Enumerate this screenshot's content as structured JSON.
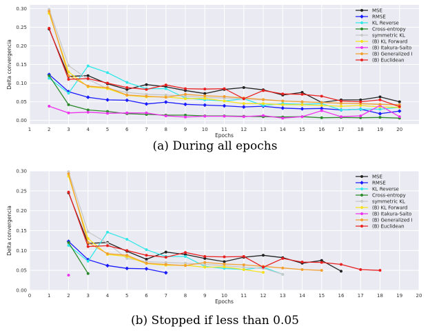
{
  "figure": {
    "caption_a": "(a) During all epochs",
    "caption_b": "(b) Stopped if less than 0.05"
  },
  "chart_data": [
    {
      "type": "line",
      "xlabel": "Epochs",
      "ylabel": "Delta convergencia",
      "xlim": [
        1,
        21
      ],
      "ylim": [
        -0.01,
        0.31
      ],
      "x_ticks": [
        1,
        2,
        3,
        4,
        5,
        6,
        7,
        8,
        9,
        10,
        11,
        12,
        13,
        14,
        15,
        16,
        17,
        18,
        19,
        20
      ],
      "y_ticks": [
        0.0,
        0.05,
        0.1,
        0.15,
        0.2,
        0.25,
        0.3
      ],
      "y_tick_labels": [
        "0.00",
        "0.05",
        "0.10",
        "0.15",
        "0.20",
        "0.25",
        "0.30"
      ],
      "grid": true,
      "legend_placement": "top-right",
      "series": [
        {
          "name": "MSE",
          "color": "#222222",
          "marker": "o",
          "x": [
            2,
            3,
            4,
            5,
            6,
            7,
            8,
            9,
            10,
            11,
            12,
            13,
            14,
            15,
            16,
            17,
            18,
            19,
            20
          ],
          "values": [
            0.245,
            0.118,
            0.12,
            0.098,
            0.083,
            0.096,
            0.09,
            0.08,
            0.072,
            0.083,
            0.088,
            0.082,
            0.068,
            0.075,
            0.048,
            0.055,
            0.055,
            0.063,
            0.05
          ]
        },
        {
          "name": "RMSE",
          "color": "#1a1aff",
          "marker": "D",
          "x": [
            2,
            3,
            4,
            5,
            6,
            7,
            8,
            9,
            10,
            11,
            12,
            13,
            14,
            15,
            16,
            17,
            18,
            19,
            20
          ],
          "values": [
            0.123,
            0.077,
            0.062,
            0.055,
            0.054,
            0.044,
            0.049,
            0.043,
            0.041,
            0.039,
            0.036,
            0.038,
            0.033,
            0.031,
            0.032,
            0.028,
            0.03,
            0.018,
            0.025
          ]
        },
        {
          "name": "KL Reverse",
          "color": "#33e8e8",
          "marker": "o",
          "x": [
            2,
            3,
            4,
            5,
            6,
            7,
            8,
            9,
            10,
            11,
            12,
            13,
            14,
            15,
            16,
            17,
            18,
            19,
            20
          ],
          "values": [
            0.113,
            0.073,
            0.146,
            0.128,
            0.102,
            0.085,
            0.085,
            0.06,
            0.055,
            0.052,
            0.058,
            0.04,
            0.045,
            0.043,
            0.045,
            0.028,
            0.03,
            0.03,
            0.035
          ]
        },
        {
          "name": "Cross-entropy",
          "color": "#2a8a2a",
          "marker": "o",
          "x": [
            2,
            3,
            4,
            5,
            6,
            7,
            8,
            9,
            10,
            11,
            12,
            13,
            14,
            15,
            16,
            17,
            18,
            19,
            20
          ],
          "values": [
            0.12,
            0.042,
            0.028,
            0.024,
            0.018,
            0.016,
            0.014,
            0.014,
            0.012,
            0.012,
            0.011,
            0.01,
            0.009,
            0.01,
            0.007,
            0.008,
            0.007,
            0.008,
            0.006
          ]
        },
        {
          "name": "symmetric KL",
          "color": "#c8c8c8",
          "marker": "o",
          "x": [
            2,
            3,
            4,
            5,
            6,
            7,
            8,
            9,
            10,
            11,
            12,
            13,
            14,
            15,
            16,
            17,
            18,
            19,
            20
          ],
          "values": [
            0.298,
            0.147,
            0.11,
            0.085,
            0.075,
            0.07,
            0.068,
            0.065,
            0.062,
            0.06,
            0.058,
            0.055,
            0.052,
            0.05,
            0.048,
            0.046,
            0.045,
            0.043,
            0.042
          ]
        },
        {
          "name": "(B) KL Forward",
          "color": "#f5e21b",
          "marker": "o",
          "x": [
            2,
            3,
            4,
            5,
            6,
            7,
            8,
            9,
            10,
            11,
            12,
            13,
            14,
            15,
            16,
            17,
            18,
            19,
            20
          ],
          "values": [
            0.287,
            0.13,
            0.09,
            0.085,
            0.067,
            0.063,
            0.063,
            0.058,
            0.059,
            0.052,
            0.045,
            0.045,
            0.042,
            0.042,
            0.04,
            0.038,
            0.04,
            0.036,
            0.035
          ]
        },
        {
          "name": "(B) Itakura-Saito",
          "color": "#ee33ee",
          "marker": "o",
          "x": [
            2,
            3,
            4,
            5,
            6,
            7,
            8,
            9,
            10,
            11,
            12,
            13,
            14,
            15,
            16,
            17,
            18,
            19,
            20
          ],
          "values": [
            0.038,
            0.02,
            0.022,
            0.019,
            0.02,
            0.02,
            0.012,
            0.009,
            0.011,
            0.011,
            0.01,
            0.013,
            0.006,
            0.01,
            0.026,
            0.01,
            0.012,
            0.04,
            0.01
          ]
        },
        {
          "name": "(B) Generalized I",
          "color": "#f2a030",
          "marker": "o",
          "x": [
            2,
            3,
            4,
            5,
            6,
            7,
            8,
            9,
            10,
            11,
            12,
            13,
            14,
            15,
            16,
            17,
            18,
            19,
            20
          ],
          "values": [
            0.293,
            0.12,
            0.092,
            0.088,
            0.068,
            0.065,
            0.062,
            0.07,
            0.066,
            0.064,
            0.06,
            0.056,
            0.052,
            0.05,
            0.048,
            0.046,
            0.045,
            0.043,
            0.042
          ]
        },
        {
          "name": "(B) Euclidean",
          "color": "#e82020",
          "marker": "o",
          "x": [
            2,
            3,
            4,
            5,
            6,
            7,
            8,
            9,
            10,
            11,
            12,
            13,
            14,
            15,
            16,
            17,
            18,
            19,
            20
          ],
          "values": [
            0.247,
            0.11,
            0.112,
            0.1,
            0.088,
            0.083,
            0.095,
            0.085,
            0.084,
            0.085,
            0.058,
            0.08,
            0.071,
            0.07,
            0.065,
            0.052,
            0.05,
            0.055,
            0.037
          ]
        }
      ]
    },
    {
      "type": "line",
      "xlabel": "Epochs",
      "ylabel": "Delta convergencia",
      "xlim": [
        0,
        20
      ],
      "ylim": [
        0,
        0.3
      ],
      "x_ticks": [
        0,
        1,
        2,
        3,
        4,
        5,
        6,
        7,
        8,
        9,
        10,
        11,
        12,
        13,
        14,
        15,
        16,
        17,
        18,
        19,
        20
      ],
      "y_ticks": [
        0.0,
        0.05,
        0.1,
        0.15,
        0.2,
        0.25,
        0.3
      ],
      "y_tick_labels": [
        "0.00",
        "0.05",
        "0.10",
        "0.15",
        "0.20",
        "0.25",
        "0.30"
      ],
      "grid": true,
      "legend_placement": "top-right",
      "series": [
        {
          "name": "MSE",
          "color": "#222222",
          "marker": "o",
          "x": [
            2,
            3,
            4,
            5,
            6,
            7,
            8,
            9,
            10,
            11,
            12,
            13,
            14,
            15,
            16
          ],
          "values": [
            0.245,
            0.118,
            0.12,
            0.098,
            0.078,
            0.096,
            0.09,
            0.08,
            0.072,
            0.083,
            0.088,
            0.082,
            0.068,
            0.075,
            0.048
          ]
        },
        {
          "name": "RMSE",
          "color": "#1a1aff",
          "marker": "D",
          "x": [
            2,
            3,
            4,
            5,
            6,
            7
          ],
          "values": [
            0.123,
            0.077,
            0.062,
            0.055,
            0.054,
            0.044
          ]
        },
        {
          "name": "KL Reverse",
          "color": "#33e8e8",
          "marker": "o",
          "x": [
            2,
            3,
            4,
            5,
            6,
            7,
            8,
            9,
            10,
            11,
            12,
            13
          ],
          "values": [
            0.113,
            0.073,
            0.146,
            0.128,
            0.102,
            0.085,
            0.085,
            0.06,
            0.055,
            0.052,
            0.058,
            0.04
          ]
        },
        {
          "name": "Cross-entropy",
          "color": "#2a8a2a",
          "marker": "o",
          "x": [
            2,
            3
          ],
          "values": [
            0.12,
            0.042
          ]
        },
        {
          "name": "symmetric KL",
          "color": "#c8c8c8",
          "marker": "o",
          "x": [
            2,
            3,
            4,
            5,
            6,
            7,
            8,
            9,
            10,
            11,
            12,
            13
          ],
          "values": [
            0.298,
            0.147,
            0.118,
            0.08,
            0.072,
            0.07,
            0.068,
            0.065,
            0.062,
            0.058,
            0.055,
            0.04
          ]
        },
        {
          "name": "(B) KL Forward",
          "color": "#f5e21b",
          "marker": "o",
          "x": [
            2,
            3,
            4,
            5,
            6,
            7,
            8,
            9,
            10,
            11,
            12
          ],
          "values": [
            0.287,
            0.13,
            0.09,
            0.085,
            0.067,
            0.063,
            0.063,
            0.058,
            0.059,
            0.052,
            0.045
          ]
        },
        {
          "name": "(B) Itakura-Saito",
          "color": "#ee33ee",
          "marker": "o",
          "x": [
            2
          ],
          "values": [
            0.038
          ]
        },
        {
          "name": "(B) Generalized I",
          "color": "#f2a030",
          "marker": "o",
          "x": [
            2,
            3,
            4,
            5,
            6,
            7,
            8,
            9,
            10,
            11,
            12,
            13,
            14,
            15
          ],
          "values": [
            0.293,
            0.12,
            0.092,
            0.088,
            0.068,
            0.065,
            0.062,
            0.07,
            0.066,
            0.064,
            0.06,
            0.056,
            0.052,
            0.05
          ]
        },
        {
          "name": "(B) Euclidean",
          "color": "#e82020",
          "marker": "o",
          "x": [
            2,
            3,
            4,
            5,
            6,
            7,
            8,
            9,
            10,
            11,
            12,
            13,
            14,
            15,
            16,
            17,
            18
          ],
          "values": [
            0.247,
            0.11,
            0.112,
            0.1,
            0.088,
            0.083,
            0.095,
            0.085,
            0.084,
            0.085,
            0.058,
            0.08,
            0.071,
            0.07,
            0.065,
            0.052,
            0.05
          ]
        }
      ]
    }
  ]
}
